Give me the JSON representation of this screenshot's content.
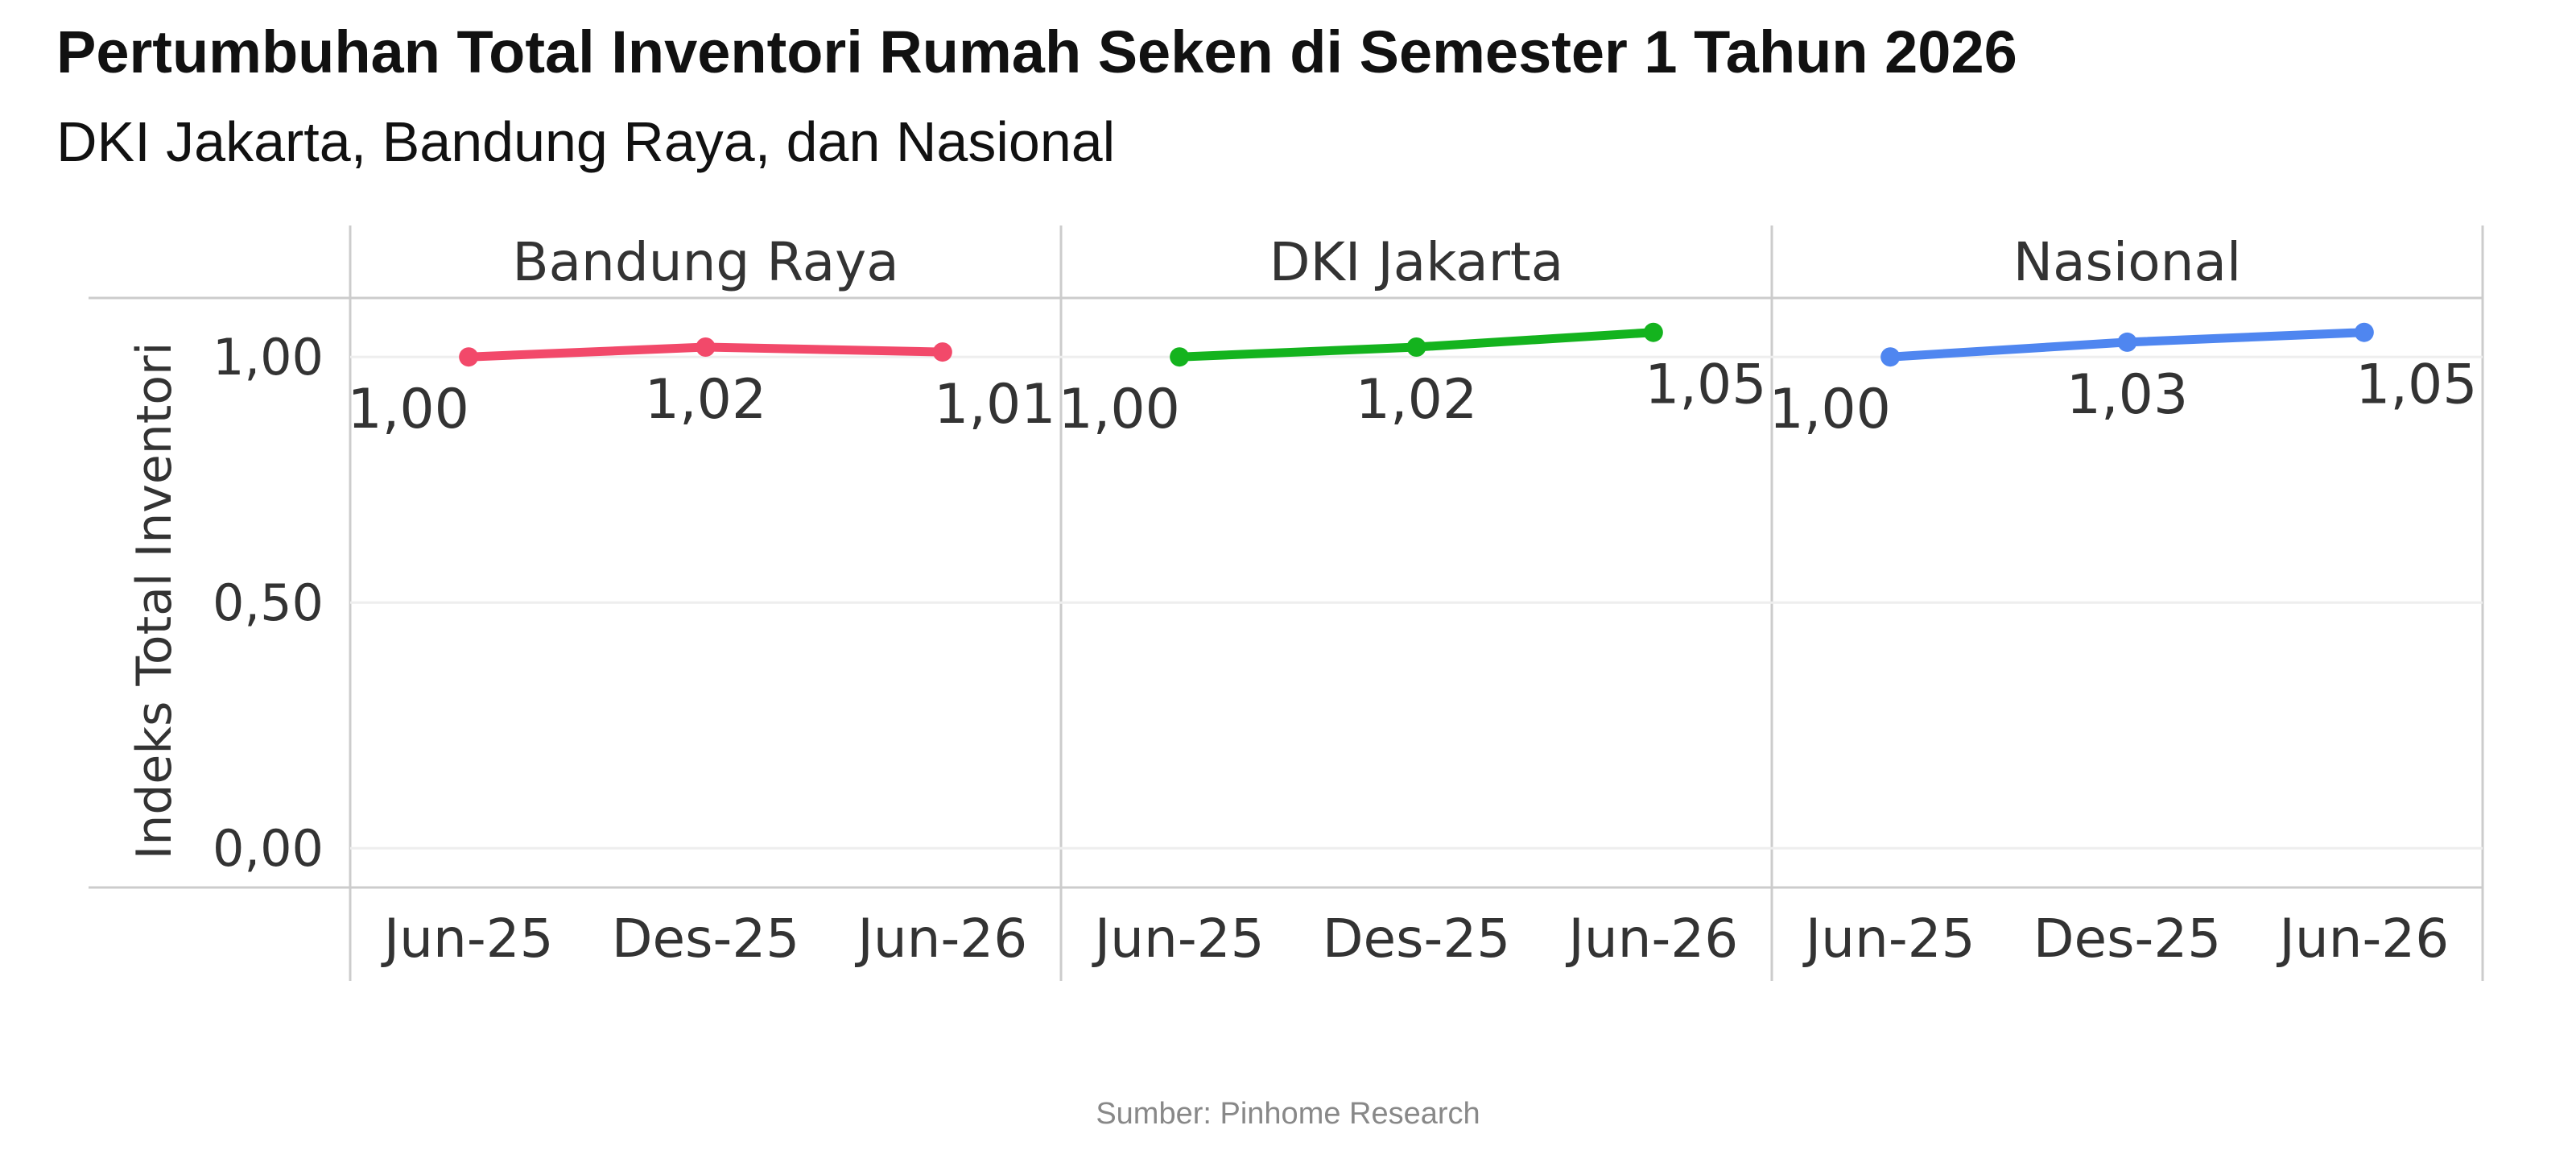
{
  "chart_data": {
    "type": "line",
    "title": "Pertumbuhan Total Inventori Rumah Seken di Semester 1 Tahun 2026",
    "subtitle": "DKI Jakarta, Bandung Raya, dan Nasional",
    "y_label": "Indeks Total Inventori",
    "source": "Sumber: Pinhome Research",
    "categories": [
      "Jun-25",
      "Des-25",
      "Jun-26"
    ],
    "series": [
      {
        "name": "Bandung Raya",
        "color": "#f2496a",
        "values": [
          1.0,
          1.02,
          1.01
        ],
        "value_labels": [
          "1,00",
          "1,02",
          "1,01"
        ]
      },
      {
        "name": "DKI Jakarta",
        "color": "#14b31e",
        "values": [
          1.0,
          1.02,
          1.05
        ],
        "value_labels": [
          "1,00",
          "1,02",
          "1,05"
        ]
      },
      {
        "name": "Nasional",
        "color": "#4f86f0",
        "values": [
          1.0,
          1.03,
          1.05
        ],
        "value_labels": [
          "1,00",
          "1,03",
          "1,05"
        ]
      }
    ],
    "ylim": [
      -0.08,
      1.12
    ],
    "yticks": [
      {
        "value": 0,
        "label": "0,00"
      },
      {
        "value": 0.5,
        "label": "0,50"
      },
      {
        "value": 1,
        "label": "1,00"
      }
    ],
    "grid": true
  }
}
